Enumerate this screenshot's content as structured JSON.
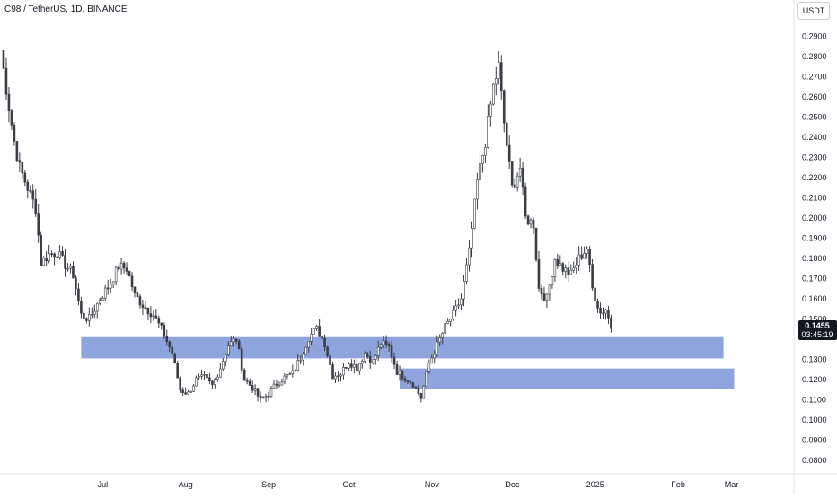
{
  "chart_data": {
    "type": "candlestick",
    "title": "C98 / TetherUS, 1D, BINANCE",
    "currency": "USDT",
    "last_price": "0.1455",
    "countdown": "03:45:19",
    "ylim": [
      0.0715,
      0.299
    ],
    "y_ticks": [
      "0.2900",
      "0.2800",
      "0.2700",
      "0.2600",
      "0.2500",
      "0.2400",
      "0.2300",
      "0.2200",
      "0.2100",
      "0.2000",
      "0.1900",
      "0.1800",
      "0.1700",
      "0.1600",
      "0.1500",
      "0.1300",
      "0.1200",
      "0.1100",
      "0.1000",
      "0.0900",
      "0.0800"
    ],
    "x_ticks": [
      {
        "label": "Jul",
        "day": 30
      },
      {
        "label": "Aug",
        "day": 61
      },
      {
        "label": "Sep",
        "day": 92
      },
      {
        "label": "Oct",
        "day": 122
      },
      {
        "label": "Nov",
        "day": 153
      },
      {
        "label": "Dec",
        "day": 183
      },
      {
        "label": "2025",
        "day": 214
      },
      {
        "label": "Feb",
        "day": 245
      },
      {
        "label": "Mar",
        "day": 273
      }
    ],
    "zones": [
      {
        "from_day": 30,
        "to_day": 270,
        "low": 0.1305,
        "high": 0.141
      },
      {
        "from_day": 149,
        "to_day": 274,
        "low": 0.1155,
        "high": 0.1255
      }
    ],
    "colors": {
      "up": "#089981",
      "down": "#f23645",
      "candle": "#3a3d45",
      "zone": "#6f8ad4",
      "price_tag": "#131722"
    },
    "anchors": [
      [
        0,
        0.283
      ],
      [
        3,
        0.255
      ],
      [
        5,
        0.238
      ],
      [
        7,
        0.225
      ],
      [
        10,
        0.215
      ],
      [
        13,
        0.205
      ],
      [
        15,
        0.178
      ],
      [
        18,
        0.182
      ],
      [
        21,
        0.183
      ],
      [
        24,
        0.177
      ],
      [
        27,
        0.172
      ],
      [
        30,
        0.152
      ],
      [
        33,
        0.15
      ],
      [
        37,
        0.16
      ],
      [
        41,
        0.168
      ],
      [
        44,
        0.176
      ],
      [
        47,
        0.175
      ],
      [
        50,
        0.162
      ],
      [
        53,
        0.157
      ],
      [
        57,
        0.152
      ],
      [
        60,
        0.145
      ],
      [
        64,
        0.133
      ],
      [
        67,
        0.115
      ],
      [
        70,
        0.113
      ],
      [
        73,
        0.12
      ],
      [
        76,
        0.121
      ],
      [
        79,
        0.117
      ],
      [
        82,
        0.126
      ],
      [
        85,
        0.137
      ],
      [
        88,
        0.14
      ],
      [
        91,
        0.12
      ],
      [
        94,
        0.116
      ],
      [
        97,
        0.11
      ],
      [
        100,
        0.113
      ],
      [
        103,
        0.118
      ],
      [
        106,
        0.121
      ],
      [
        109,
        0.123
      ],
      [
        112,
        0.131
      ],
      [
        115,
        0.141
      ],
      [
        118,
        0.145
      ],
      [
        121,
        0.138
      ],
      [
        124,
        0.122
      ],
      [
        127,
        0.123
      ],
      [
        130,
        0.129
      ],
      [
        133,
        0.126
      ],
      [
        136,
        0.133
      ],
      [
        139,
        0.129
      ],
      [
        142,
        0.138
      ],
      [
        145,
        0.136
      ],
      [
        148,
        0.124
      ],
      [
        151,
        0.121
      ],
      [
        154,
        0.118
      ],
      [
        157,
        0.111
      ],
      [
        160,
        0.128
      ],
      [
        163,
        0.137
      ],
      [
        166,
        0.146
      ],
      [
        169,
        0.152
      ],
      [
        172,
        0.16
      ],
      [
        175,
        0.183
      ],
      [
        178,
        0.218
      ],
      [
        181,
        0.238
      ],
      [
        184,
        0.265
      ],
      [
        186,
        0.275
      ],
      [
        188,
        0.247
      ],
      [
        191,
        0.215
      ],
      [
        194,
        0.225
      ],
      [
        196,
        0.2
      ],
      [
        199,
        0.197
      ],
      [
        201,
        0.165
      ],
      [
        204,
        0.16
      ],
      [
        207,
        0.18
      ],
      [
        210,
        0.175
      ],
      [
        213,
        0.172
      ],
      [
        216,
        0.18
      ],
      [
        219,
        0.185
      ],
      [
        221,
        0.165
      ],
      [
        224,
        0.153
      ],
      [
        226,
        0.155
      ],
      [
        228,
        0.146
      ]
    ]
  }
}
